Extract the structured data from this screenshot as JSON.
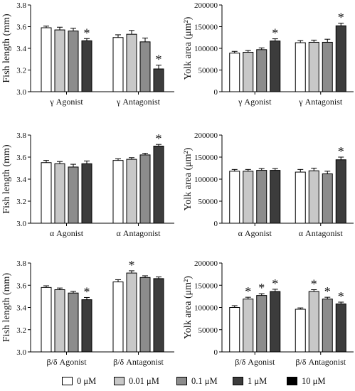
{
  "series_colors": [
    "#ffffff",
    "#c8c8c8",
    "#8c8c8c",
    "#3c3c3c",
    "#000000"
  ],
  "legend": {
    "items": [
      {
        "label": "0 μM"
      },
      {
        "label": "0.01 μM"
      },
      {
        "label": "0.1 μM"
      },
      {
        "label": "1 μM"
      },
      {
        "label": "10 μM"
      }
    ]
  },
  "chart_data": [
    {
      "type": "bar",
      "ylabel": "Fish length (mm)",
      "ylim": [
        3.0,
        3.8
      ],
      "yticks": [
        3.0,
        3.2,
        3.4,
        3.6,
        3.8
      ],
      "categories": [
        "γ Agonist",
        "γ Antagonist"
      ],
      "series": [
        {
          "name": "0 μM",
          "values": [
            3.59,
            3.5
          ],
          "errors": [
            0.015,
            0.025
          ],
          "significant": [
            false,
            false
          ]
        },
        {
          "name": "0.01 μM",
          "values": [
            3.57,
            3.53
          ],
          "errors": [
            0.025,
            0.035
          ],
          "significant": [
            false,
            false
          ]
        },
        {
          "name": "0.1 μM",
          "values": [
            3.56,
            3.46
          ],
          "errors": [
            0.025,
            0.035
          ],
          "significant": [
            false,
            false
          ]
        },
        {
          "name": "1 μM",
          "values": [
            3.47,
            3.21
          ],
          "errors": [
            0.02,
            0.035
          ],
          "significant": [
            true,
            true
          ]
        }
      ]
    },
    {
      "type": "bar",
      "ylabel": "Yolk area (μm²)",
      "ylim": [
        0,
        200000
      ],
      "yticks": [
        0,
        50000,
        100000,
        150000,
        200000
      ],
      "categories": [
        "γ Agonist",
        "γ Antagonist"
      ],
      "series": [
        {
          "name": "0 μM",
          "values": [
            89000,
            113000
          ],
          "errors": [
            4000,
            5000
          ],
          "significant": [
            false,
            false
          ]
        },
        {
          "name": "0.01 μM",
          "values": [
            91000,
            114000
          ],
          "errors": [
            4000,
            5000
          ],
          "significant": [
            false,
            false
          ]
        },
        {
          "name": "0.1 μM",
          "values": [
            97000,
            114000
          ],
          "errors": [
            4000,
            7000
          ],
          "significant": [
            false,
            false
          ]
        },
        {
          "name": "1 μM",
          "values": [
            117000,
            152000
          ],
          "errors": [
            5000,
            6000
          ],
          "significant": [
            true,
            true
          ]
        }
      ]
    },
    {
      "type": "bar",
      "ylabel": "Fish length (mm)",
      "ylim": [
        3.0,
        3.8
      ],
      "yticks": [
        3.0,
        3.2,
        3.4,
        3.6,
        3.8
      ],
      "categories": [
        "α Agonist",
        "α Antagonist"
      ],
      "series": [
        {
          "name": "0 μM",
          "values": [
            3.55,
            3.57
          ],
          "errors": [
            0.02,
            0.015
          ],
          "significant": [
            false,
            false
          ]
        },
        {
          "name": "0.01 μM",
          "values": [
            3.54,
            3.58
          ],
          "errors": [
            0.02,
            0.015
          ],
          "significant": [
            false,
            false
          ]
        },
        {
          "name": "0.1 μM",
          "values": [
            3.51,
            3.62
          ],
          "errors": [
            0.025,
            0.015
          ],
          "significant": [
            false,
            false
          ]
        },
        {
          "name": "1 μM",
          "values": [
            3.54,
            3.7
          ],
          "errors": [
            0.025,
            0.015
          ],
          "significant": [
            false,
            true
          ]
        }
      ]
    },
    {
      "type": "bar",
      "ylabel": "Yolk area (μm²)",
      "ylim": [
        0,
        200000
      ],
      "yticks": [
        0,
        50000,
        100000,
        150000,
        200000
      ],
      "categories": [
        "α Agonist",
        "α Antagonist"
      ],
      "series": [
        {
          "name": "0 μM",
          "values": [
            118000,
            116000
          ],
          "errors": [
            4000,
            6000
          ],
          "significant": [
            false,
            false
          ]
        },
        {
          "name": "0.01 μM",
          "values": [
            118000,
            119000
          ],
          "errors": [
            4000,
            6000
          ],
          "significant": [
            false,
            false
          ]
        },
        {
          "name": "0.1 μM",
          "values": [
            120000,
            112000
          ],
          "errors": [
            4000,
            6000
          ],
          "significant": [
            false,
            false
          ]
        },
        {
          "name": "1 μM",
          "values": [
            120000,
            144000
          ],
          "errors": [
            4000,
            6000
          ],
          "significant": [
            false,
            true
          ]
        }
      ]
    },
    {
      "type": "bar",
      "ylabel": "Fish length (mm)",
      "ylim": [
        3.0,
        3.8
      ],
      "yticks": [
        3.0,
        3.2,
        3.4,
        3.6,
        3.8
      ],
      "categories": [
        "β/δ Agonist",
        "β/δ Antagonist"
      ],
      "series": [
        {
          "name": "0 μM",
          "values": [
            3.58,
            3.63
          ],
          "errors": [
            0.015,
            0.02
          ],
          "significant": [
            false,
            false
          ]
        },
        {
          "name": "0.01 μM",
          "values": [
            3.56,
            3.71
          ],
          "errors": [
            0.015,
            0.02
          ],
          "significant": [
            false,
            true
          ]
        },
        {
          "name": "0.1 μM",
          "values": [
            3.53,
            3.67
          ],
          "errors": [
            0.015,
            0.015
          ],
          "significant": [
            false,
            false
          ]
        },
        {
          "name": "1 μM",
          "values": [
            3.47,
            3.66
          ],
          "errors": [
            0.02,
            0.015
          ],
          "significant": [
            true,
            false
          ]
        }
      ]
    },
    {
      "type": "bar",
      "ylabel": "Yolk area (μm²)",
      "ylim": [
        0,
        200000
      ],
      "yticks": [
        0,
        50000,
        100000,
        150000,
        200000
      ],
      "categories": [
        "β/δ Agonist",
        "β/δ Antagonist"
      ],
      "series": [
        {
          "name": "0 μM",
          "values": [
            100000,
            96000
          ],
          "errors": [
            4000,
            3000
          ],
          "significant": [
            false,
            false
          ]
        },
        {
          "name": "0.01 μM",
          "values": [
            119000,
            136000
          ],
          "errors": [
            4000,
            4000
          ],
          "significant": [
            true,
            true
          ]
        },
        {
          "name": "0.1 μM",
          "values": [
            127000,
            119000
          ],
          "errors": [
            4000,
            4000
          ],
          "significant": [
            true,
            true
          ]
        },
        {
          "name": "1 μM",
          "values": [
            136000,
            108000
          ],
          "errors": [
            5000,
            4000
          ],
          "significant": [
            true,
            true
          ]
        }
      ]
    }
  ],
  "significance_marker": "*"
}
